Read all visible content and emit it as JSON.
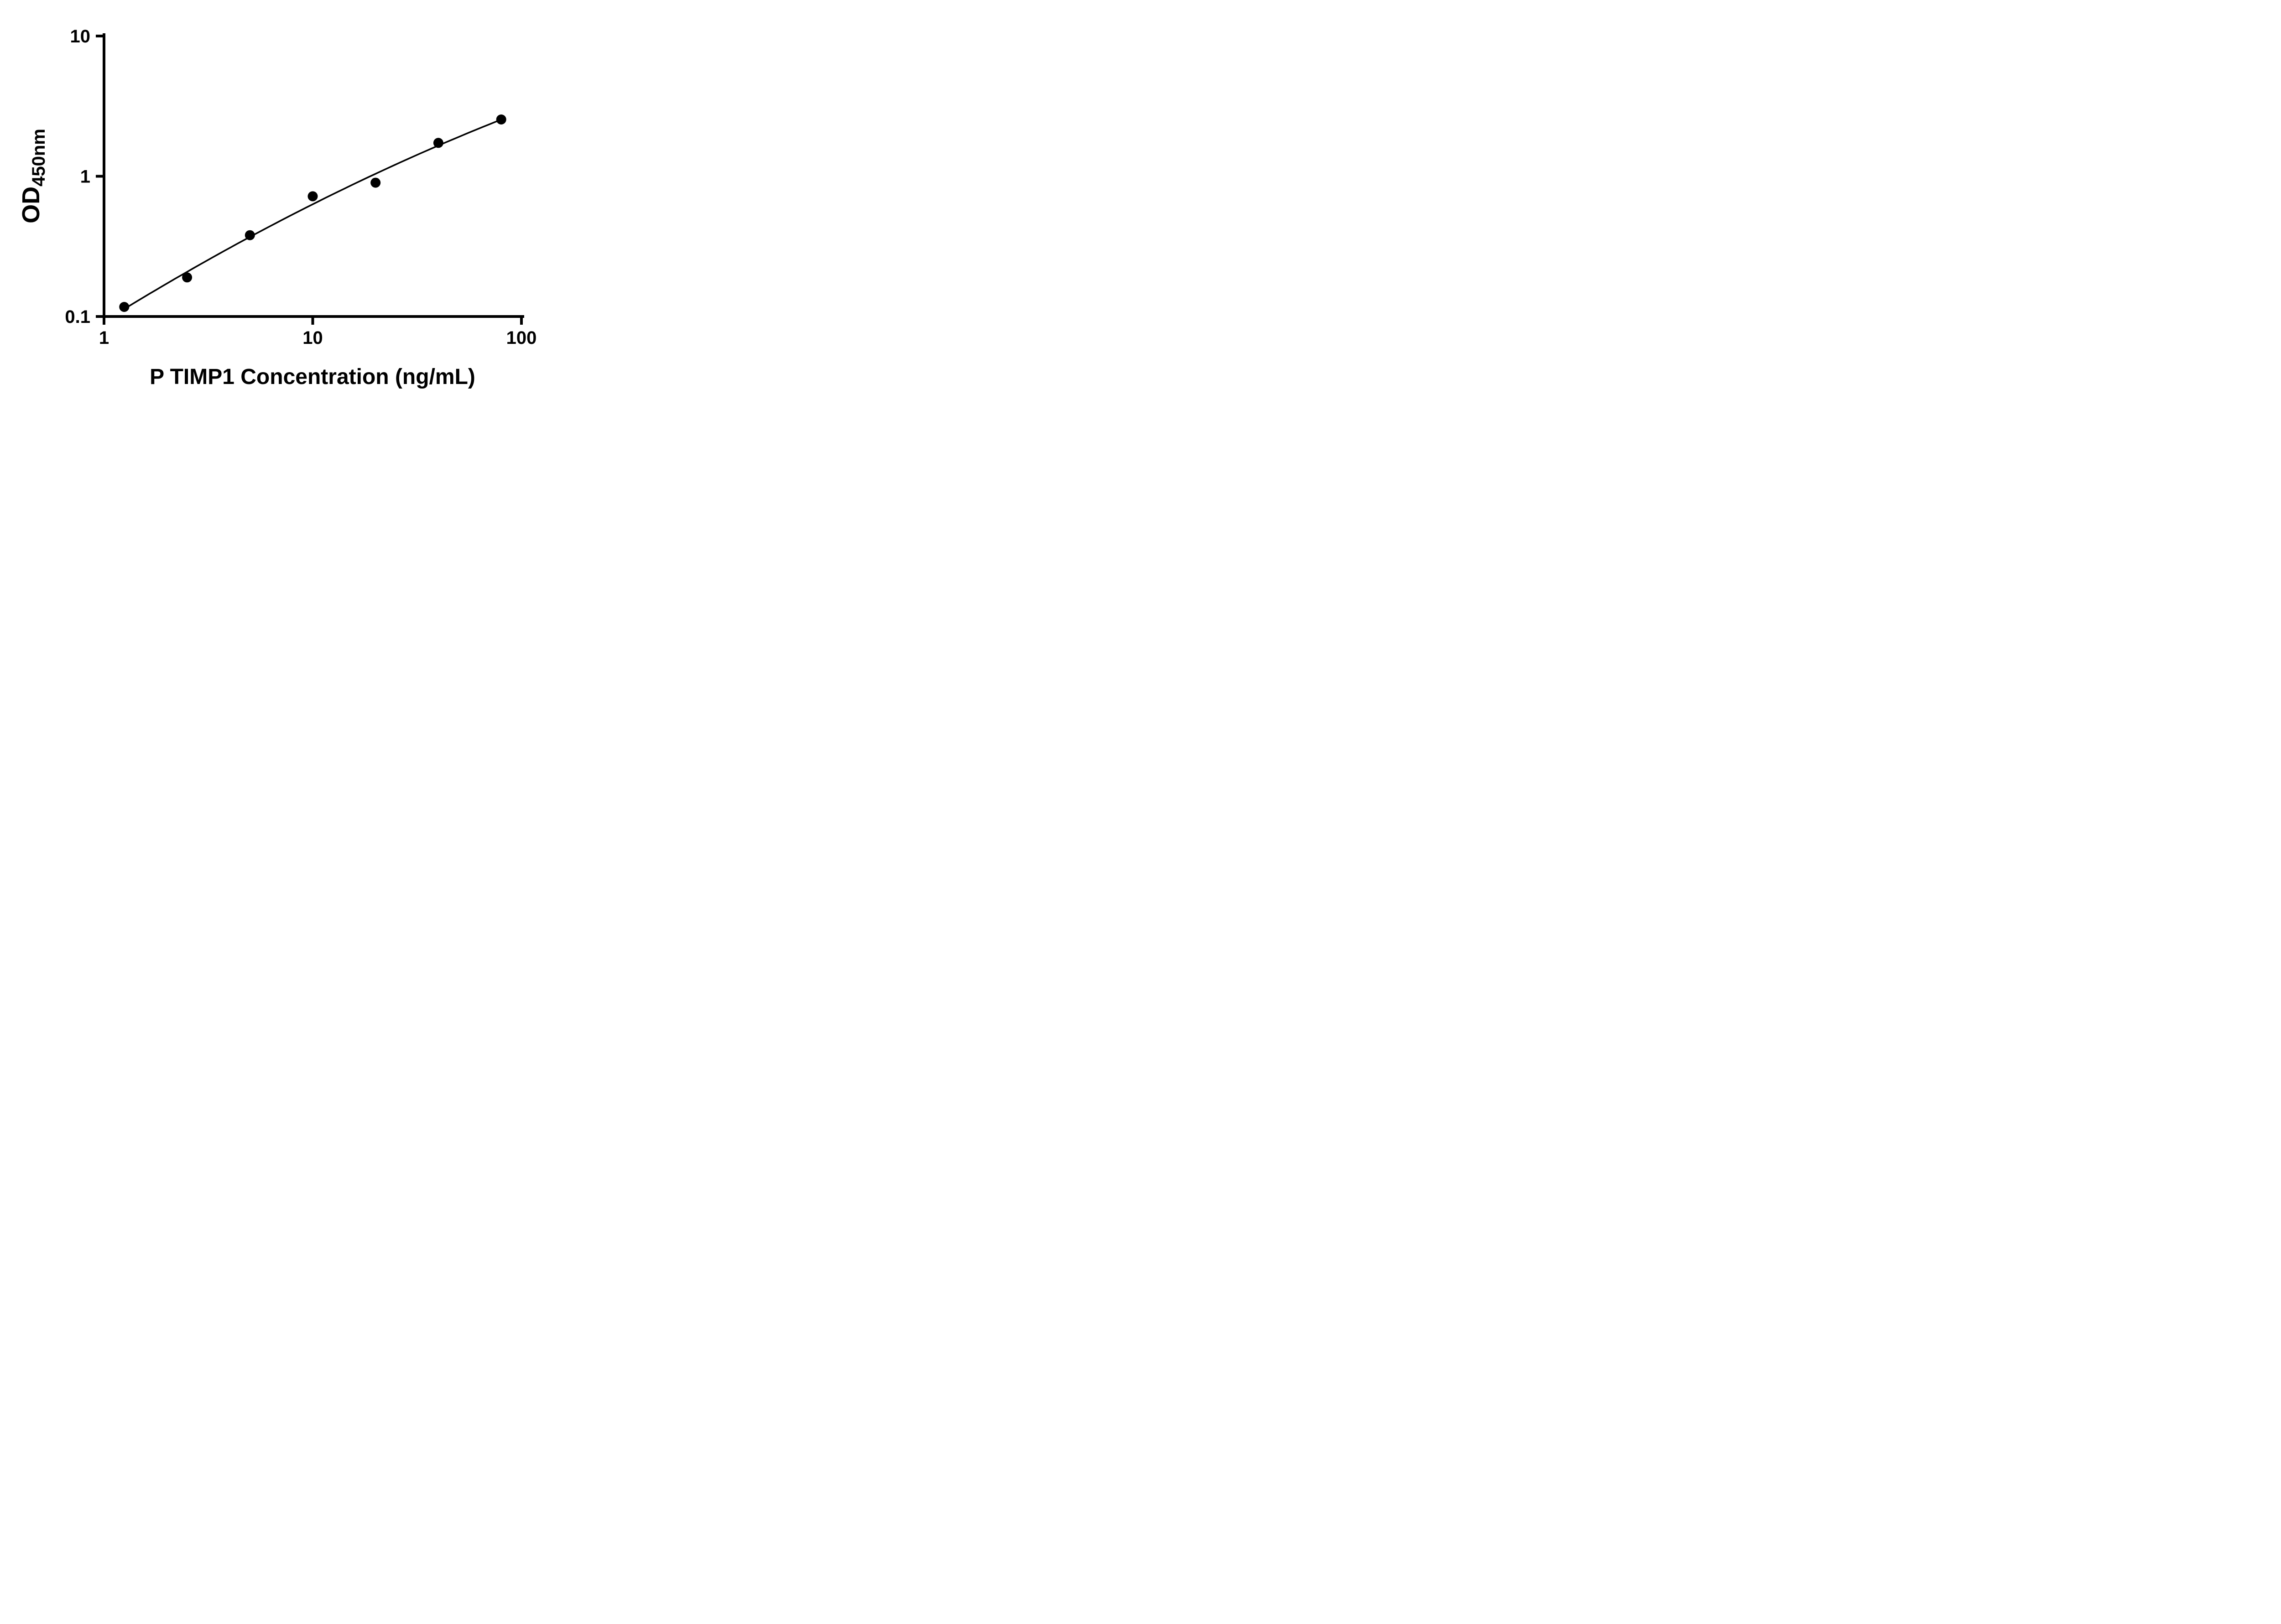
{
  "chart_data": {
    "type": "scatter",
    "title": "",
    "xlabel": "P TIMP1 Concentration (ng/mL)",
    "ylabel": "OD",
    "ylabel_subscript": "450nm",
    "x": [
      1.25,
      2.5,
      5,
      10,
      20,
      40,
      80
    ],
    "y": [
      0.117,
      0.19,
      0.38,
      0.72,
      0.9,
      1.73,
      2.54
    ],
    "xscale": "log",
    "yscale": "log",
    "xlim": [
      1,
      100
    ],
    "ylim": [
      0.1,
      10
    ],
    "x_ticks": [
      1,
      10,
      100
    ],
    "x_tick_labels": [
      "1",
      "10",
      "100"
    ],
    "y_ticks": [
      10,
      1,
      0.1
    ],
    "y_tick_labels": [
      "10",
      "1",
      "0.1"
    ],
    "grid": false,
    "legend": null,
    "marker_color": "#000000",
    "line_color": "#000000",
    "background_color": "#ffffff",
    "trendline": "quadratic-fit-loglog"
  }
}
